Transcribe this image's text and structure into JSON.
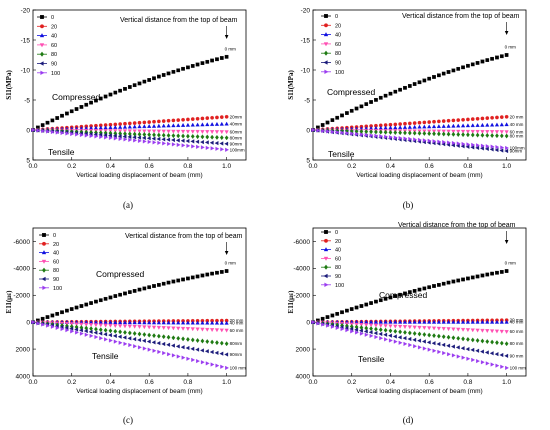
{
  "chart_data": [
    {
      "type": "scatter",
      "panel_label": "(a)",
      "xlabel": "Vertical loading displacement of beam (mm)",
      "ylabel": "S11(MPa)",
      "xlim": [
        0,
        1.1
      ],
      "ylim": [
        5,
        -20
      ],
      "reversed_y": true,
      "xticks": [
        "0.0",
        "0.2",
        "0.4",
        "0.6",
        "0.8",
        "1.0"
      ],
      "yticks": [
        "-20",
        "-15",
        "-10",
        "-5",
        "0",
        "5"
      ],
      "annotation": "Vertical distance from the top of beam",
      "region_top": "Compressed",
      "region_bottom": "Tensile",
      "legend_position": "top-left",
      "series": [
        {
          "name": "0",
          "color": "#000000",
          "marker": "square",
          "x": [
            0,
            1
          ],
          "y": [
            0,
            -12.2
          ],
          "end_label": "0 mm"
        },
        {
          "name": "20",
          "color": "#e02020",
          "marker": "circle",
          "x": [
            0,
            1
          ],
          "y": [
            0,
            -2.2
          ],
          "end_label": "20mm"
        },
        {
          "name": "40",
          "color": "#1010e0",
          "marker": "triangle-up",
          "x": [
            0,
            1
          ],
          "y": [
            0,
            -1.0
          ],
          "end_label": "40mm"
        },
        {
          "name": "60",
          "color": "#ff4fb3",
          "marker": "triangle-down",
          "x": [
            0,
            1
          ],
          "y": [
            0,
            0.3
          ],
          "end_label": "60mm"
        },
        {
          "name": "80",
          "color": "#1e7a12",
          "marker": "diamond",
          "x": [
            0,
            1
          ],
          "y": [
            0,
            1.3
          ],
          "end_label": "80mm"
        },
        {
          "name": "90",
          "color": "#1a1a7a",
          "marker": "triangle-left",
          "x": [
            0,
            1
          ],
          "y": [
            0,
            2.3
          ],
          "end_label": "90mm"
        },
        {
          "name": "100",
          "color": "#9b3cf0",
          "marker": "triangle-right",
          "x": [
            0,
            1
          ],
          "y": [
            0,
            3.3
          ],
          "end_label": "100mm"
        }
      ]
    },
    {
      "type": "scatter",
      "panel_label": "(b)",
      "xlabel": "Vertical loading displacement of beam (mm)",
      "ylabel": "S11(MPa)",
      "xlim": [
        0,
        1.1
      ],
      "ylim": [
        5,
        -20
      ],
      "reversed_y": true,
      "xticks": [
        "0.0",
        "0.2",
        "0.4",
        "0.6",
        "0.8",
        "1.0"
      ],
      "yticks": [
        "-20",
        "-15",
        "-10",
        "-5",
        "0",
        "5"
      ],
      "annotation": "Vertical distance from the top of beam",
      "region_top": "Compressed",
      "region_bottom": "Tensile",
      "legend_position": "top-left",
      "series": [
        {
          "name": "0",
          "color": "#000000",
          "marker": "square",
          "x": [
            0,
            1
          ],
          "y": [
            0,
            -12.5
          ],
          "end_label": "0 mm"
        },
        {
          "name": "20",
          "color": "#e02020",
          "marker": "circle",
          "x": [
            0,
            1
          ],
          "y": [
            0,
            -2.2
          ],
          "end_label": "20 mm"
        },
        {
          "name": "40",
          "color": "#1010e0",
          "marker": "triangle-up",
          "x": [
            0,
            1
          ],
          "y": [
            0,
            -0.9
          ],
          "end_label": "40 mm"
        },
        {
          "name": "60",
          "color": "#ff4fb3",
          "marker": "triangle-down",
          "x": [
            0,
            1
          ],
          "y": [
            0,
            0.3
          ],
          "end_label": "60 mm"
        },
        {
          "name": "80",
          "color": "#1e7a12",
          "marker": "diamond",
          "x": [
            0,
            1
          ],
          "y": [
            0,
            1.0
          ],
          "end_label": "80 mm"
        },
        {
          "name": "90",
          "color": "#1a1a7a",
          "marker": "triangle-left",
          "x": [
            0,
            1
          ],
          "y": [
            0,
            3.5
          ],
          "end_label": "90mm"
        },
        {
          "name": "100",
          "color": "#9b3cf0",
          "marker": "triangle-right",
          "x": [
            0,
            1
          ],
          "y": [
            0,
            3.0
          ],
          "end_label": "100mm"
        }
      ]
    },
    {
      "type": "scatter",
      "panel_label": "(c)",
      "xlabel": "Vertical loading displacement of beam (mm)",
      "ylabel": "E11(με)",
      "xlim": [
        0,
        1.1
      ],
      "ylim": [
        4000,
        -7000
      ],
      "reversed_y": true,
      "xticks": [
        "0.0",
        "0.2",
        "0.4",
        "0.6",
        "0.8",
        "1.0"
      ],
      "yticks": [
        "-6000",
        "-4000",
        "-2000",
        "0",
        "2000",
        "4000"
      ],
      "annotation": "Vertical distance from the top of beam",
      "region_top": "Compressed",
      "region_bottom": "Tensile",
      "legend_position": "top-left",
      "series": [
        {
          "name": "0",
          "color": "#000000",
          "marker": "square",
          "x": [
            0,
            1
          ],
          "y": [
            0,
            -3800
          ],
          "end_label": "0 mm"
        },
        {
          "name": "20",
          "color": "#e02020",
          "marker": "circle",
          "x": [
            0,
            1
          ],
          "y": [
            0,
            -120
          ],
          "end_label": "20 mm"
        },
        {
          "name": "40",
          "color": "#1010e0",
          "marker": "triangle-up",
          "x": [
            0,
            1
          ],
          "y": [
            0,
            70
          ],
          "end_label": "40 mm"
        },
        {
          "name": "60",
          "color": "#ff4fb3",
          "marker": "triangle-down",
          "x": [
            0,
            1
          ],
          "y": [
            0,
            600
          ],
          "end_label": "60 mm"
        },
        {
          "name": "80",
          "color": "#1e7a12",
          "marker": "diamond",
          "x": [
            0,
            1
          ],
          "y": [
            0,
            1600
          ],
          "end_label": "80mm"
        },
        {
          "name": "90",
          "color": "#1a1a7a",
          "marker": "triangle-left",
          "x": [
            0,
            1
          ],
          "y": [
            0,
            2400
          ],
          "end_label": "90mm"
        },
        {
          "name": "100",
          "color": "#9b3cf0",
          "marker": "triangle-right",
          "x": [
            0,
            1
          ],
          "y": [
            0,
            3400
          ],
          "end_label": "100 mm"
        }
      ]
    },
    {
      "type": "scatter",
      "panel_label": "(d)",
      "xlabel": "Vertical loading displacement of beam (mm)",
      "ylabel": "E11(με)",
      "xlim": [
        0,
        1.1
      ],
      "ylim": [
        4000,
        -7000
      ],
      "reversed_y": true,
      "xticks": [
        "0.0",
        "0.2",
        "0.4",
        "0.6",
        "0.8",
        "1.0"
      ],
      "yticks": [
        "-6000",
        "-4000",
        "-2000",
        "0",
        "2000",
        "4000"
      ],
      "annotation": "Vertical distance from the top of beam",
      "region_top": "Compressed",
      "region_bottom": "Tensile",
      "legend_position": "top-left",
      "series": [
        {
          "name": "0",
          "color": "#000000",
          "marker": "square",
          "x": [
            0,
            1
          ],
          "y": [
            0,
            -3800
          ],
          "end_label": "0 mm"
        },
        {
          "name": "20",
          "color": "#e02020",
          "marker": "circle",
          "x": [
            0,
            1
          ],
          "y": [
            0,
            -150
          ],
          "end_label": "20 mm"
        },
        {
          "name": "40",
          "color": "#1010e0",
          "marker": "triangle-up",
          "x": [
            0,
            1
          ],
          "y": [
            0,
            0
          ],
          "end_label": "40 mm"
        },
        {
          "name": "60",
          "color": "#ff4fb3",
          "marker": "triangle-down",
          "x": [
            0,
            1
          ],
          "y": [
            0,
            700
          ],
          "end_label": "60 mm"
        },
        {
          "name": "80",
          "color": "#1e7a12",
          "marker": "diamond",
          "x": [
            0,
            1
          ],
          "y": [
            0,
            1600
          ],
          "end_label": "80 mm"
        },
        {
          "name": "90",
          "color": "#1a1a7a",
          "marker": "triangle-left",
          "x": [
            0,
            1
          ],
          "y": [
            0,
            2500
          ],
          "end_label": "90 mm"
        },
        {
          "name": "100",
          "color": "#9b3cf0",
          "marker": "triangle-right",
          "x": [
            0,
            1
          ],
          "y": [
            0,
            3400
          ],
          "end_label": "100 mm"
        }
      ]
    }
  ]
}
